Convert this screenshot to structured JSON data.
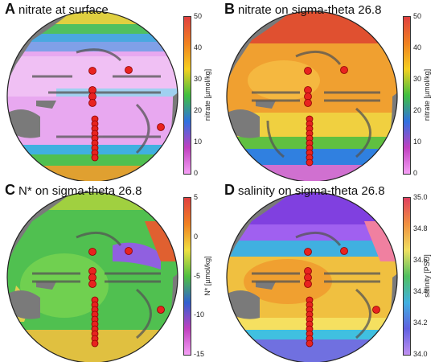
{
  "colors": {
    "land": "#7a7a7a",
    "arrow": "#555555",
    "station": "#e8231f",
    "station_edge": "#8a0000"
  },
  "panels": [
    {
      "letter": "A",
      "title": "nitrate at surface",
      "colorbar": {
        "label": "nitrate [µmol/kg]",
        "ticks": [
          "50",
          "40",
          "30",
          "20",
          "10",
          "0"
        ],
        "gradient": [
          "#e04040",
          "#f08020",
          "#f5d020",
          "#40c040",
          "#3070e0",
          "#c040c0",
          "#f5a0f5"
        ]
      }
    },
    {
      "letter": "B",
      "title": "nitrate on sigma-theta 26.8",
      "colorbar": {
        "label": "nitrate [µmol/kg]",
        "ticks": [
          "50",
          "40",
          "30",
          "20",
          "10",
          "0"
        ],
        "gradient": [
          "#e04040",
          "#f08020",
          "#f5d020",
          "#40c040",
          "#3070e0",
          "#c040c0",
          "#f5a0f5"
        ]
      }
    },
    {
      "letter": "C",
      "title": "N* on sigma-theta 26.8",
      "colorbar": {
        "label": "N* [µmol/kg]",
        "ticks": [
          "5",
          "0",
          "-5",
          "-10",
          "-15"
        ],
        "gradient": [
          "#e04040",
          "#f08020",
          "#f0e040",
          "#50c040",
          "#3060d0",
          "#c040c0",
          "#f5a0f5"
        ]
      }
    },
    {
      "letter": "D",
      "title": "salinity on sigma-theta 26.8",
      "colorbar": {
        "label": "salinity [PSU]",
        "ticks": [
          "35.0",
          "34.8",
          "34.6",
          "34.4",
          "34.2",
          "34.0"
        ],
        "gradient": [
          "#e04060",
          "#f09040",
          "#f0e060",
          "#50c060",
          "#40b0e0",
          "#6060e0",
          "#c090f0"
        ]
      }
    }
  ]
}
